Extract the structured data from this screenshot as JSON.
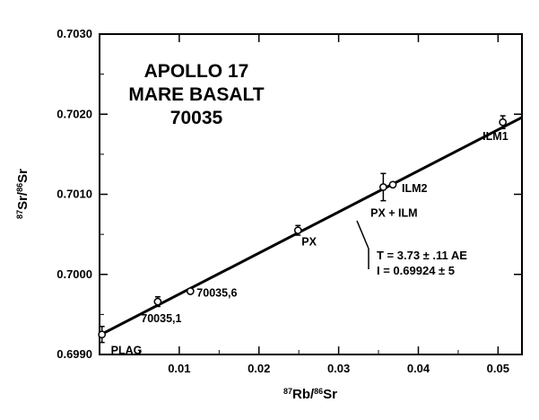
{
  "chart_data": {
    "type": "scatter",
    "title_lines": [
      "APOLLO 17",
      "MARE BASALT",
      "70035"
    ],
    "xlabel": {
      "mass_top": "87",
      "elem_top": "Rb",
      "mass_bottom": "86",
      "elem_bottom": "Sr"
    },
    "ylabel": {
      "mass_top": "87",
      "elem_top": "Sr",
      "mass_bottom": "86",
      "elem_bottom": "Sr"
    },
    "xlim": [
      0,
      0.053
    ],
    "ylim": [
      0.699,
      0.703
    ],
    "x_ticks": [
      {
        "value": 0.01,
        "label": "0.01"
      },
      {
        "value": 0.02,
        "label": "0.02"
      },
      {
        "value": 0.03,
        "label": "0.03"
      },
      {
        "value": 0.04,
        "label": "0.04"
      },
      {
        "value": 0.05,
        "label": "0.05"
      }
    ],
    "y_ticks": [
      {
        "value": 0.699,
        "label": "0.6990"
      },
      {
        "value": 0.7,
        "label": "0.7000"
      },
      {
        "value": 0.701,
        "label": "0.7010"
      },
      {
        "value": 0.702,
        "label": "0.7020"
      },
      {
        "value": 0.703,
        "label": "0.7030"
      }
    ],
    "points": [
      {
        "label": "PLAG",
        "x": 0.0003,
        "y": 0.69925,
        "yerr": 0.0001,
        "label_pos": "below-right"
      },
      {
        "label": "70035,1",
        "x": 0.0073,
        "y": 0.69966,
        "yerr": 6e-05,
        "label_pos": "below"
      },
      {
        "label": "70035,6",
        "x": 0.0114,
        "y": 0.69979,
        "yerr": 3e-05,
        "label_pos": "right"
      },
      {
        "label": "PX",
        "x": 0.0249,
        "y": 0.70055,
        "yerr": 6e-05,
        "label_pos": "below-right"
      },
      {
        "label": "PX + ILM",
        "x": 0.0356,
        "y": 0.70109,
        "yerr": 0.00017,
        "label_pos": "below"
      },
      {
        "label": "ILM2",
        "x": 0.0368,
        "y": 0.70112,
        "yerr": 2e-05,
        "label_pos": "right"
      },
      {
        "label": "ILM1",
        "x": 0.0506,
        "y": 0.7019,
        "yerr": 8e-05,
        "label_pos": "below-left"
      }
    ],
    "fit_line": {
      "x": [
        0,
        0.053
      ],
      "y": [
        0.69924,
        0.70196
      ]
    },
    "annotation": {
      "line1": "T = 3.73 ± .11 AE",
      "line2": "I = 0.69924 ± 5"
    }
  }
}
